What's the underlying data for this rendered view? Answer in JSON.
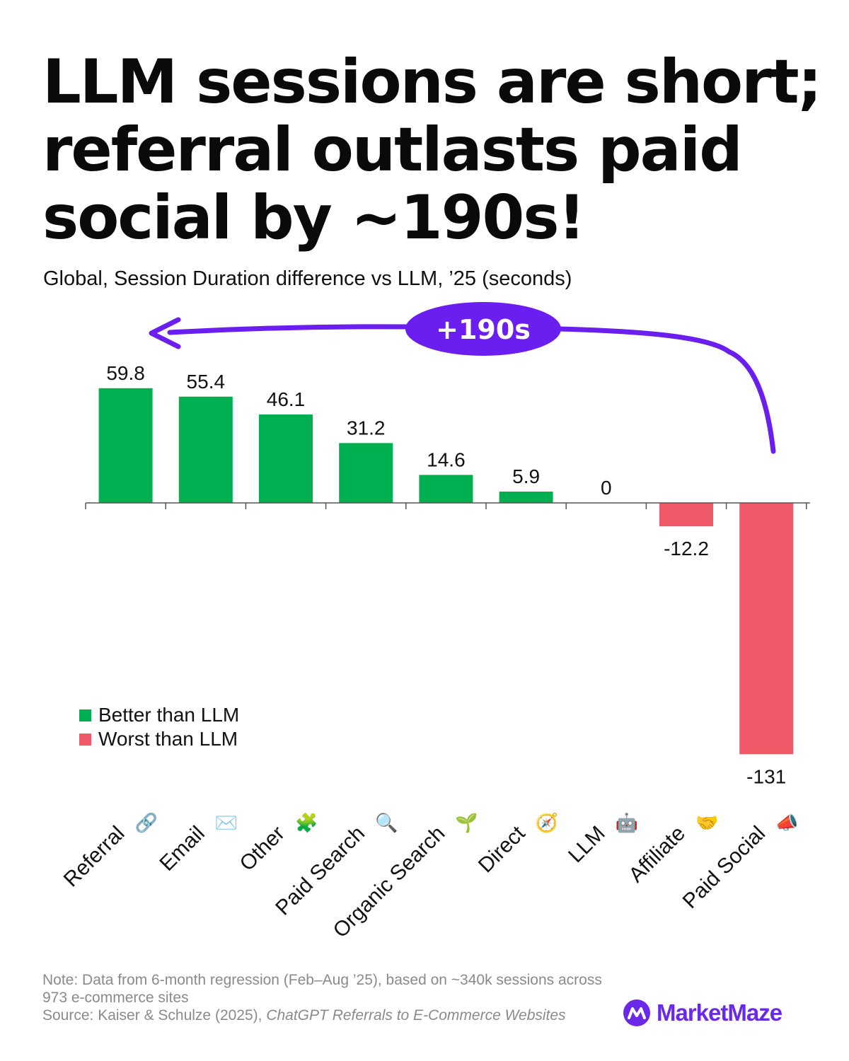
{
  "title": "LLM sessions are short; referral outlasts paid social by ~190s!",
  "subtitle": "Global, Session Duration difference vs LLM, ’25 (seconds)",
  "annotation": {
    "label": "+190s"
  },
  "legend": {
    "better": "Better than LLM",
    "worse": "Worst than LLM"
  },
  "colors": {
    "positive": "#00b050",
    "negative": "#f05a68",
    "accent": "#6a1ff0",
    "axis": "#555555"
  },
  "chart_data": {
    "type": "bar",
    "title": "LLM sessions are short; referral outlasts paid social by ~190s!",
    "subtitle": "Global, Session Duration difference vs LLM, ’25 (seconds)",
    "categories": [
      "Referral",
      "Email",
      "Other",
      "Paid Search",
      "Organic Search",
      "Direct",
      "LLM",
      "Affiliate",
      "Paid Social"
    ],
    "category_icons": [
      "chain-link-icon",
      "envelope-icon",
      "puzzle-piece-icon",
      "magnifying-glass-icon",
      "seedling-icon",
      "compass-icon",
      "robot-icon",
      "handshake-icon",
      "megaphone-icon"
    ],
    "category_emoji": [
      "🔗",
      "✉️",
      "🧩",
      "🔍",
      "🌱",
      "🧭",
      "🤖",
      "🤝",
      "📣"
    ],
    "values": [
      59.8,
      55.4,
      46.1,
      31.2,
      14.6,
      5.9,
      0,
      -12.2,
      -131
    ],
    "value_labels": [
      "59.8",
      "55.4",
      "46.1",
      "31.2",
      "14.6",
      "5.9",
      "0",
      "-12.2",
      "-131"
    ],
    "ylim": [
      -131,
      59.8
    ],
    "grid": false,
    "legend_position": "bottom-left"
  },
  "footer": {
    "note": "Note: Data from 6-month regression (Feb–Aug ’25), based on ~340k sessions across 973 e-commerce sites",
    "source_prefix": "Source: Kaiser & Schulze (2025), ",
    "source_title": "ChatGPT Referrals to E-Commerce Websites",
    "brand": "MarketMaze"
  }
}
